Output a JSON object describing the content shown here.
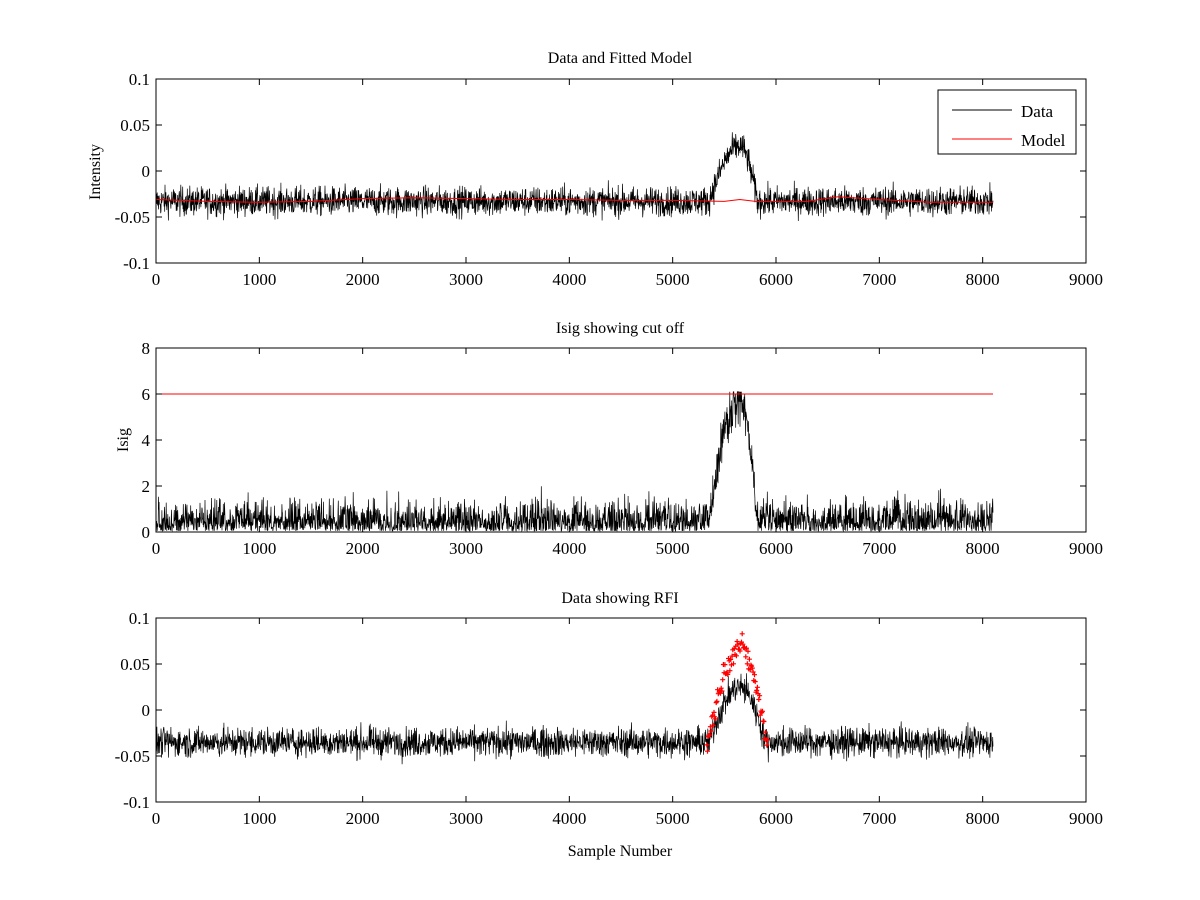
{
  "chart_data": [
    {
      "type": "line",
      "title": "Data and Fitted Model",
      "xlabel": "",
      "ylabel": "Intensity",
      "xlim": [
        0,
        9000
      ],
      "ylim": [
        -0.1,
        0.1
      ],
      "xticks": [
        0,
        1000,
        2000,
        3000,
        4000,
        5000,
        6000,
        7000,
        8000,
        9000
      ],
      "yticks": [
        -0.1,
        -0.05,
        0,
        0.05,
        0.1
      ],
      "ytick_labels": [
        "-0.1",
        "-0.05",
        "0",
        "0.05",
        "0.1"
      ],
      "grid": false,
      "legend": {
        "position": "top-right",
        "entries": [
          "Data",
          "Model"
        ]
      },
      "series": [
        {
          "name": "Data",
          "color": "#000000",
          "kind": "noise",
          "x_range": [
            0,
            8100
          ],
          "baseline": -0.033,
          "noise_amp": 0.016,
          "noise_std": 0.008,
          "bump": {
            "x_start": 5350,
            "x_peak": 5650,
            "x_end": 5820,
            "peak": 0.06
          }
        },
        {
          "name": "Model",
          "color": "#ff0000",
          "x": [
            0,
            500,
            1000,
            1500,
            2000,
            2500,
            3000,
            3500,
            4000,
            4500,
            5000,
            5500,
            5650,
            5800,
            6000,
            6300,
            6600,
            7000,
            7500,
            8100
          ],
          "y": [
            -0.031,
            -0.033,
            -0.034,
            -0.033,
            -0.03,
            -0.029,
            -0.03,
            -0.031,
            -0.031,
            -0.032,
            -0.032,
            -0.033,
            -0.031,
            -0.033,
            -0.033,
            -0.033,
            -0.028,
            -0.031,
            -0.034,
            -0.034
          ]
        }
      ]
    },
    {
      "type": "line",
      "title": "Isig showing cut off",
      "xlabel": "",
      "ylabel": "Isig",
      "xlim": [
        0,
        9000
      ],
      "ylim": [
        0,
        8
      ],
      "xticks": [
        0,
        1000,
        2000,
        3000,
        4000,
        5000,
        6000,
        7000,
        8000,
        9000
      ],
      "yticks": [
        0,
        2,
        4,
        6,
        8
      ],
      "ytick_labels": [
        "0",
        "2",
        "4",
        "6",
        "8"
      ],
      "grid": false,
      "series": [
        {
          "color": "#000000",
          "kind": "isig",
          "x_range": [
            0,
            8100
          ],
          "max_noise": 1.9,
          "bump": {
            "x_start": 5350,
            "x_peak": 5650,
            "x_end": 5820,
            "peak": 5.8
          }
        },
        {
          "color": "#ff0000",
          "x": [
            0,
            8100
          ],
          "y": [
            6,
            6
          ]
        }
      ]
    },
    {
      "type": "line",
      "title": "Data showing RFI",
      "xlabel": "Sample Number",
      "ylabel": "",
      "xlim": [
        0,
        9000
      ],
      "ylim": [
        -0.1,
        0.1
      ],
      "xticks": [
        0,
        1000,
        2000,
        3000,
        4000,
        5000,
        6000,
        7000,
        8000,
        9000
      ],
      "yticks": [
        -0.1,
        -0.05,
        0,
        0.05,
        0.1
      ],
      "ytick_labels": [
        "-0.1",
        "-0.05",
        "0",
        "0.05",
        "0.1"
      ],
      "grid": false,
      "series": [
        {
          "color": "#000000",
          "kind": "noise",
          "x_range": [
            0,
            8100
          ],
          "baseline": -0.035,
          "noise_amp": 0.016,
          "noise_std": 0.008,
          "bump": {
            "x_start": 5350,
            "x_peak": 5650,
            "x_end": 5900,
            "peak": 0.06
          }
        },
        {
          "color": "#ff0000",
          "kind": "rfi-markers",
          "x_range": [
            5330,
            5920
          ],
          "bump": {
            "x_start": 5330,
            "x_peak": 5650,
            "x_end": 5920,
            "base": -0.04,
            "peak": 0.068
          }
        }
      ]
    }
  ]
}
